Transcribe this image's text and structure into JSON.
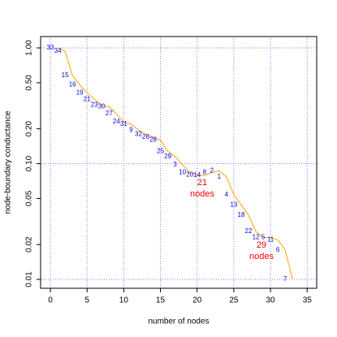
{
  "chart_data": {
    "type": "line",
    "x_label": "number of nodes",
    "y_label": "node-boundary conductance",
    "log_y": true,
    "grid": true,
    "xlim": [
      -1.33,
      36.3
    ],
    "xticks": [
      0,
      5,
      10,
      15,
      20,
      25,
      30,
      35
    ],
    "ylim": [
      0.00838,
      1.254
    ],
    "yticks": [
      {
        "value": 1.0,
        "label": "1.00"
      },
      {
        "value": 0.5,
        "label": "0.50"
      },
      {
        "value": 0.2,
        "label": "0.20"
      },
      {
        "value": 0.1,
        "label": "0.10"
      },
      0.05,
      0.02,
      0.01
    ],
    "series": [
      {
        "color": "#ffa500",
        "label_color": "#0000ee",
        "x": [
          1,
          2,
          3,
          4,
          5,
          6,
          7,
          8,
          9,
          10,
          11,
          12,
          13,
          14,
          15,
          16,
          17,
          18,
          19,
          20,
          21,
          22,
          23,
          24,
          25,
          26,
          27,
          28,
          29,
          30,
          31,
          32,
          33
        ],
        "values": [
          1.0,
          0.94,
          0.58,
          0.48,
          0.41,
          0.36,
          0.32,
          0.31,
          0.27,
          0.23,
          0.22,
          0.195,
          0.18,
          0.17,
          0.16,
          0.128,
          0.115,
          0.098,
          0.084,
          0.08,
          0.079,
          0.084,
          0.087,
          0.077,
          0.054,
          0.044,
          0.036,
          0.026,
          0.023,
          0.023,
          0.022,
          0.018,
          0.01
        ],
        "point_labels": [
          "33",
          "34",
          "15",
          "16",
          "19",
          "21",
          "23",
          "30",
          "27",
          "24",
          "31",
          "9",
          "32",
          "26",
          "28",
          "25",
          "29",
          "3",
          "10",
          "20",
          "14",
          "8",
          "2",
          "1",
          "4",
          "13",
          "18",
          "22",
          "12",
          "5",
          "11",
          "6",
          "7"
        ]
      }
    ],
    "annotations": [
      {
        "lines": [
          "21",
          "nodes"
        ],
        "color": "#ff0000"
      },
      {
        "lines": [
          "29",
          "nodes"
        ],
        "color": "#ff0000"
      }
    ]
  }
}
